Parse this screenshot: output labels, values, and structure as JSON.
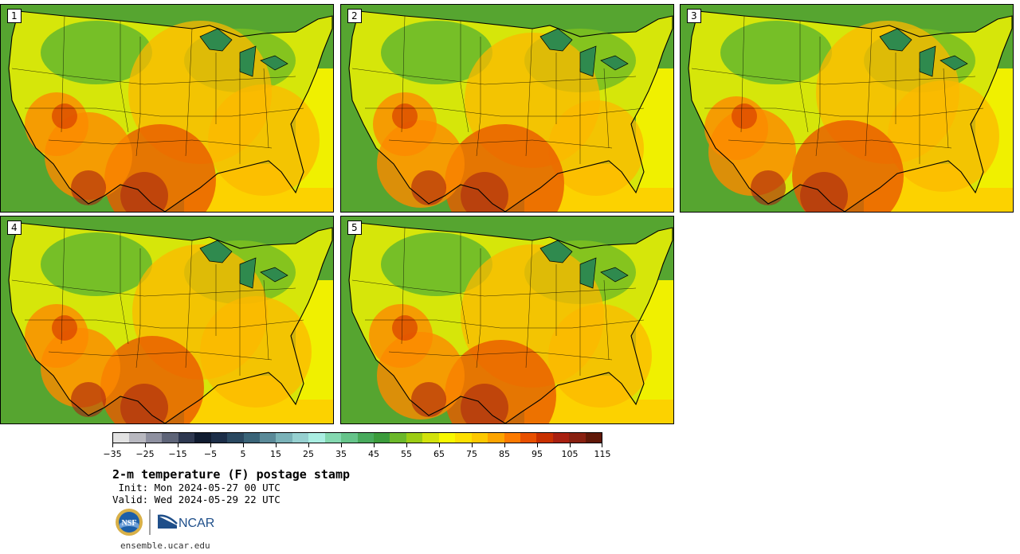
{
  "panels": [
    {
      "label": "1"
    },
    {
      "label": "2"
    },
    {
      "label": "3"
    },
    {
      "label": "4"
    },
    {
      "label": "5"
    }
  ],
  "colorbar": {
    "colors": [
      "#e2e2e2",
      "#b8b8c0",
      "#8e90a0",
      "#5e6478",
      "#2e3850",
      "#101c30",
      "#1c2e48",
      "#2a4860",
      "#3a6478",
      "#5a8a98",
      "#7ab2b8",
      "#96d0d0",
      "#aaeee2",
      "#84d8b0",
      "#66c48a",
      "#48aa5c",
      "#3c9c3c",
      "#6cb82a",
      "#9ccc14",
      "#d2e20c",
      "#f8f800",
      "#fde000",
      "#fcc800",
      "#fca400",
      "#fc7a00",
      "#e85000",
      "#c83000",
      "#a82010",
      "#882010",
      "#601808"
    ],
    "tick_labels": [
      "−35",
      "−25",
      "−15",
      "−5",
      "5",
      "15",
      "25",
      "35",
      "45",
      "55",
      "65",
      "75",
      "85",
      "95",
      "105",
      "115"
    ]
  },
  "title": "2-m temperature (F) postage stamp",
  "init": " Init: Mon 2024-05-27 00 UTC",
  "valid": "Valid: Wed 2024-05-29 22 UTC",
  "logos": {
    "nsf": "NSF",
    "ncar": "NCAR"
  },
  "footer": "ensemble.ucar.edu"
}
